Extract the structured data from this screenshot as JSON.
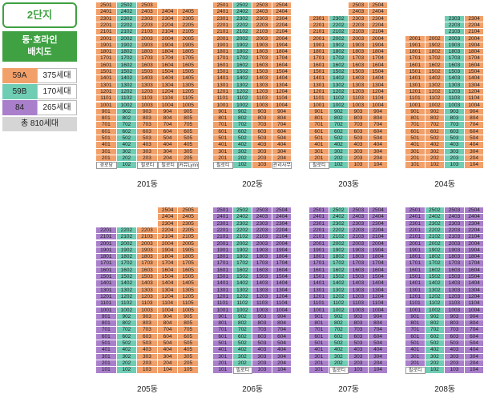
{
  "sidebar": {
    "complex_label": "2단지",
    "title_line1": "동·호라인",
    "title_line2": "배치도",
    "legend": [
      {
        "type": "59A",
        "count": "375세대",
        "color": "#f2a06a"
      },
      {
        "type": "59B",
        "count": "170세대",
        "color": "#6fcdb4"
      },
      {
        "type": "84",
        "count": "265세대",
        "color": "#a97fcb"
      }
    ],
    "total": "총 810세대"
  },
  "colors": {
    "59A": "#f2a06a",
    "59B": "#6fcdb4",
    "84": "#a97fcb",
    "pilotis": "#ffffff"
  },
  "buildings": [
    {
      "name": "201동",
      "lines": [
        "01",
        "02",
        "03",
        "04",
        "05"
      ],
      "types": [
        "59A",
        "59B",
        "59A",
        "59A",
        "59A"
      ],
      "top_floors": [
        25,
        25,
        25,
        24,
        24
      ],
      "ground": [
        "경로당",
        "102",
        "필로티",
        "필로티",
        "커뮤Lynn"
      ],
      "ground_type": [
        "pil",
        "59B",
        "pil",
        "pil",
        "pil"
      ]
    },
    {
      "name": "202동",
      "lines": [
        "01",
        "02",
        "03",
        "04"
      ],
      "types": [
        "59A",
        "59B",
        "59A",
        "59A"
      ],
      "top_floors": [
        25,
        25,
        25,
        25
      ],
      "ground": [
        "필로티",
        "102",
        "103",
        "관리사무소"
      ],
      "ground_type": [
        "pil",
        "59B",
        "59A",
        "pil"
      ]
    },
    {
      "name": "203동",
      "lines": [
        "01",
        "02",
        "03",
        "04"
      ],
      "types": [
        "59A",
        "59B",
        "59A",
        "59A"
      ],
      "top_floors": [
        23,
        23,
        25,
        25
      ],
      "ground": [
        "필로티",
        "102",
        "103",
        "104"
      ],
      "ground_type": [
        "pil",
        "59B",
        "59A",
        "59A"
      ]
    },
    {
      "name": "204동",
      "lines": [
        "01",
        "02",
        "03",
        "04"
      ],
      "types": [
        "59A",
        "59A",
        "59B",
        "59A"
      ],
      "top_floors": [
        20,
        20,
        23,
        23
      ],
      "ground": [
        "101",
        "102",
        "103",
        "104"
      ],
      "ground_type": [
        "59A",
        "59A",
        "59B",
        "59A"
      ]
    },
    {
      "name": "205동",
      "lines": [
        "01",
        "02",
        "03",
        "04",
        "05"
      ],
      "types": [
        "84",
        "59B",
        "59A",
        "59A",
        "59A"
      ],
      "top_floors": [
        22,
        22,
        22,
        25,
        25
      ],
      "ground": [
        "101",
        "102",
        "103",
        "104",
        "105"
      ],
      "ground_type": [
        "84",
        "59B",
        "59A",
        "59A",
        "59A"
      ]
    },
    {
      "name": "206동",
      "lines": [
        "01",
        "02",
        "03",
        "04"
      ],
      "types": [
        "84",
        "59B",
        "84",
        "84"
      ],
      "top_floors": [
        25,
        25,
        25,
        25
      ],
      "ground": [
        "101",
        "필로티",
        "103",
        "104"
      ],
      "ground_type": [
        "84",
        "pil",
        "84",
        "84"
      ]
    },
    {
      "name": "207동",
      "lines": [
        "01",
        "02",
        "03",
        "04"
      ],
      "types": [
        "84",
        "59B",
        "84",
        "84"
      ],
      "top_floors": [
        25,
        25,
        25,
        25
      ],
      "ground": [
        "101",
        "필로티",
        "103",
        "104"
      ],
      "ground_type": [
        "84",
        "pil",
        "84",
        "84"
      ]
    },
    {
      "name": "208동",
      "lines": [
        "01",
        "02",
        "03",
        "04"
      ],
      "types": [
        "84",
        "59B",
        "84",
        "84"
      ],
      "top_floors": [
        25,
        25,
        25,
        25
      ],
      "ground": [
        "필로티",
        "102",
        "103",
        "104"
      ],
      "ground_type": [
        "pil",
        "59B",
        "84",
        "84"
      ]
    }
  ]
}
